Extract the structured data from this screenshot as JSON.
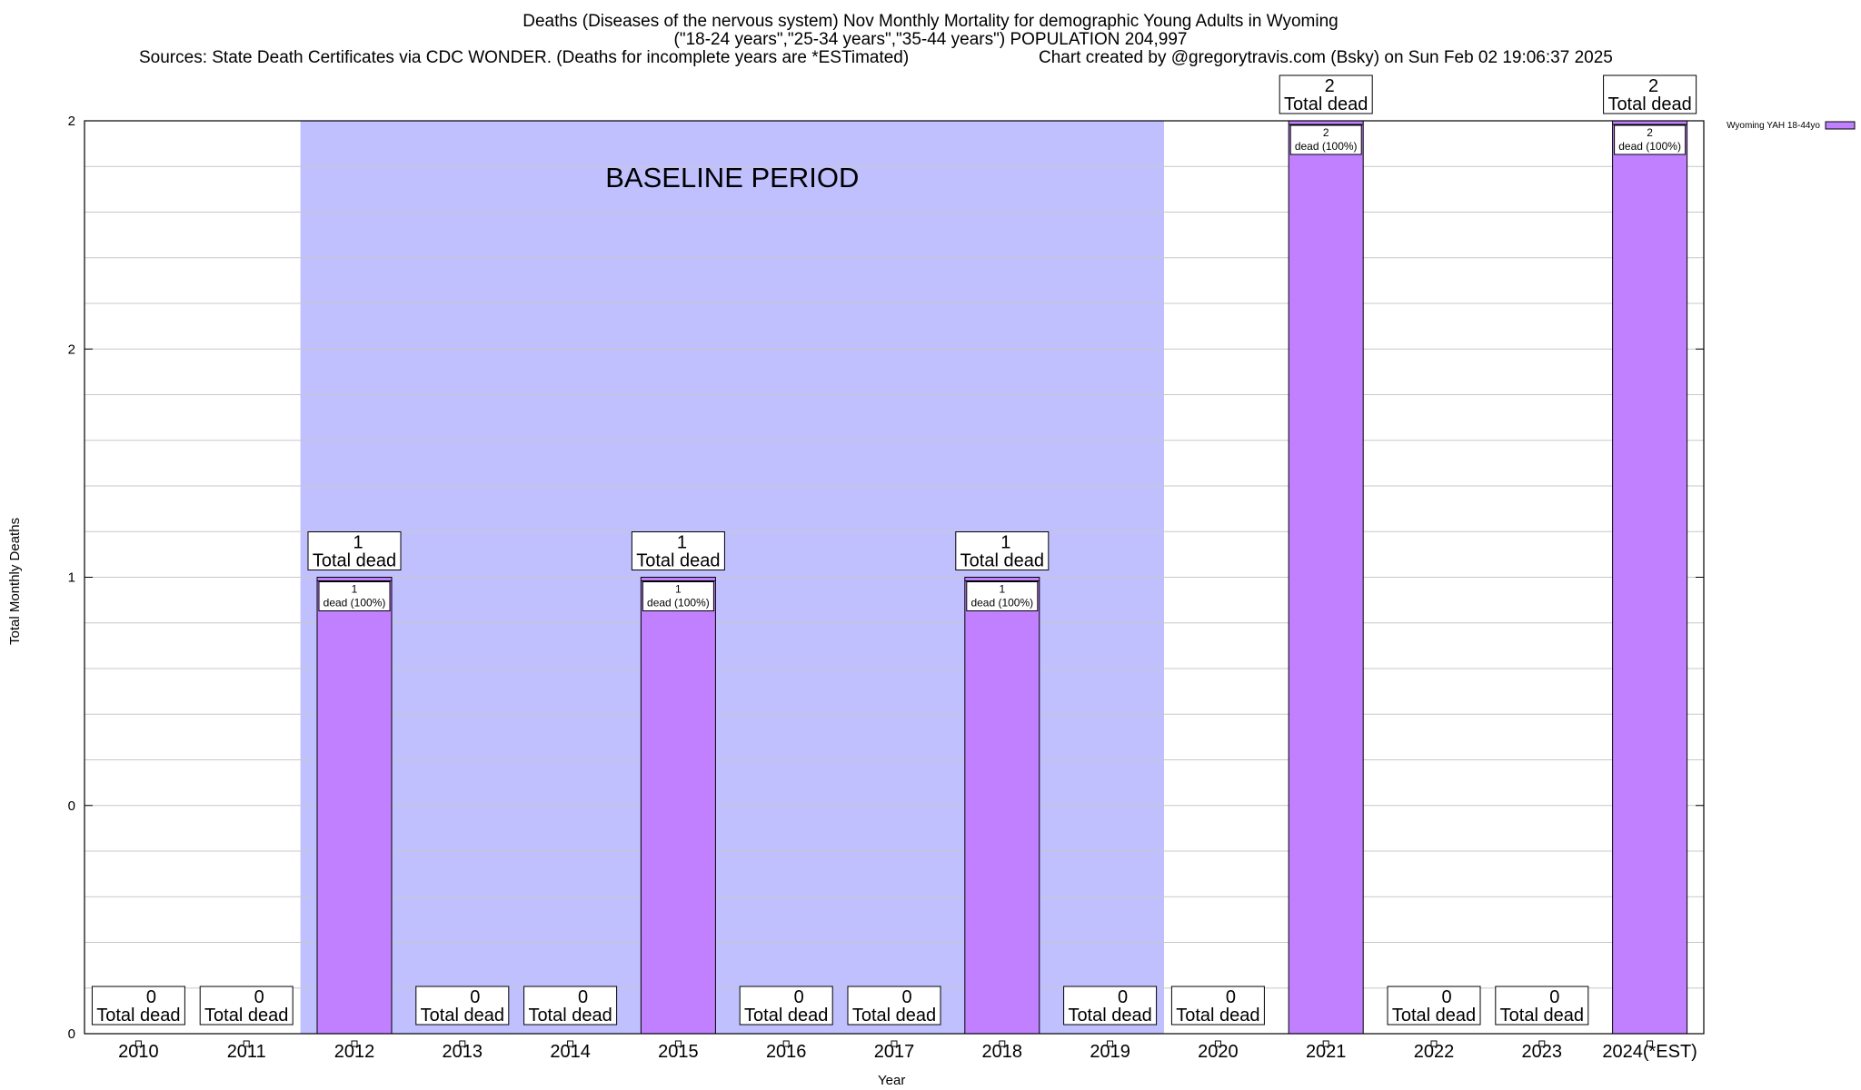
{
  "header": {
    "title": "Deaths (Diseases of the nervous system) Nov Monthly Mortality for demographic Young Adults in Wyoming",
    "subtitle_groups": "(\"18-24 years\",\"25-34 years\",\"35-44 years\") POPULATION 204,997",
    "sources": "Sources: State Death Certificates via CDC WONDER. (Deaths for incomplete years are *ESTimated)",
    "credit": "Chart created by @gregorytravis.com (Bsky) on Sun Feb 02 19:06:37 2025"
  },
  "chart_data": {
    "type": "bar",
    "xlabel": "Year",
    "ylabel": "Total Monthly Deaths",
    "ylim": [
      0,
      2
    ],
    "yticks": [
      "0",
      "0",
      "1",
      "2",
      "2"
    ],
    "categories": [
      "2010",
      "2011",
      "2012",
      "2013",
      "2014",
      "2015",
      "2016",
      "2017",
      "2018",
      "2019",
      "2020",
      "2021",
      "2022",
      "2023",
      "2024(*EST)"
    ],
    "series": [
      {
        "name": "Wyoming YAH 18-44yo",
        "values": [
          0,
          0,
          1,
          0,
          0,
          1,
          0,
          0,
          1,
          0,
          0,
          2,
          0,
          0,
          2
        ],
        "color": "#c080ff"
      }
    ],
    "total_labels": [
      "Total dead",
      "Total dead",
      "Total dead",
      "Total dead",
      "Total dead",
      "Total dead",
      "Total dead",
      "Total dead",
      "Total dead",
      "Total dead",
      "Total dead",
      "Total dead",
      "Total dead",
      "Total dead",
      "Total dead"
    ],
    "segment_labels": [
      "",
      "",
      "dead (100%)",
      "",
      "",
      "dead (100%)",
      "",
      "",
      "dead (100%)",
      "",
      "",
      "dead (100%)",
      "",
      "",
      "dead (100%)"
    ],
    "baseline": {
      "label": "BASELINE PERIOD",
      "from": "2012",
      "to": "2019",
      "color": "#c0c0ff"
    },
    "legend_position": "top-right",
    "grid": true
  }
}
